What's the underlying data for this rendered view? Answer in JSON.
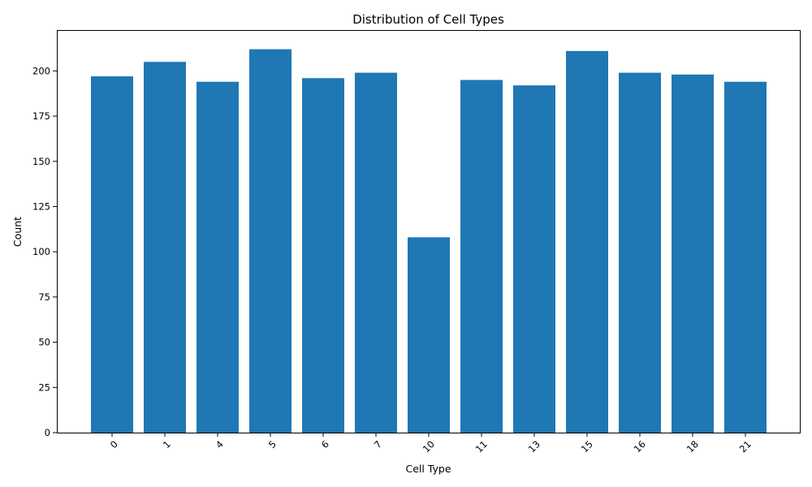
{
  "chart_data": {
    "type": "bar",
    "title": "Distribution of Cell Types",
    "xlabel": "Cell Type",
    "ylabel": "Count",
    "categories": [
      "0",
      "1",
      "4",
      "5",
      "6",
      "7",
      "10",
      "11",
      "13",
      "15",
      "16",
      "18",
      "21"
    ],
    "values": [
      197,
      205,
      194,
      212,
      196,
      199,
      108,
      195,
      192,
      211,
      199,
      198,
      194
    ],
    "ylim": [
      0,
      222.6
    ],
    "yticks": [
      0,
      25,
      50,
      75,
      100,
      125,
      150,
      175,
      200
    ],
    "xtick_rotation": 45,
    "grid": false,
    "bar_color": "#1f77b4"
  }
}
